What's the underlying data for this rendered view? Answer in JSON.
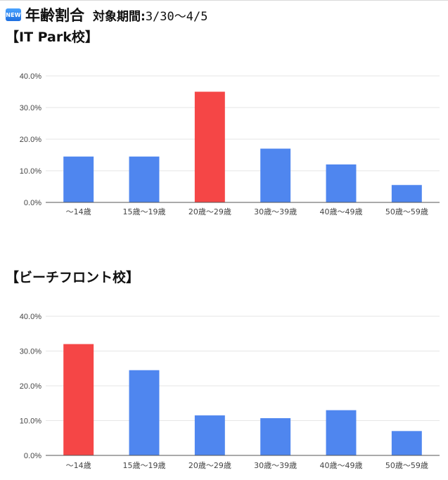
{
  "header": {
    "badge": "NEW",
    "title": "年齢割合",
    "period_label": "対象期間:",
    "period_value": "3/30〜4/5"
  },
  "colors": {
    "bar": "#4f86ef",
    "highlight": "#f54646",
    "grid": "#e6e6e6",
    "axis": "#555555"
  },
  "chart_data": [
    {
      "type": "bar",
      "title": "【IT Park校】",
      "categories": [
        "〜14歳",
        "15歳〜19歳",
        "20歳〜29歳",
        "30歳〜39歳",
        "40歳〜49歳",
        "50歳〜59歳"
      ],
      "values": [
        14.5,
        14.5,
        35.0,
        17.0,
        12.0,
        5.5
      ],
      "highlight_index": 2,
      "ylim": [
        0,
        40
      ],
      "yticks": [
        "0.0%",
        "10.0%",
        "20.0%",
        "30.0%",
        "40.0%"
      ],
      "grid": true
    },
    {
      "type": "bar",
      "title": "【ビーチフロント校】",
      "categories": [
        "〜14歳",
        "15歳〜19歳",
        "20歳〜29歳",
        "30歳〜39歳",
        "40歳〜49歳",
        "50歳〜59歳"
      ],
      "values": [
        32.0,
        24.5,
        11.5,
        10.7,
        13.0,
        7.0
      ],
      "highlight_index": 0,
      "ylim": [
        0,
        40
      ],
      "yticks": [
        "0.0%",
        "10.0%",
        "20.0%",
        "30.0%",
        "40.0%"
      ],
      "grid": true
    }
  ]
}
